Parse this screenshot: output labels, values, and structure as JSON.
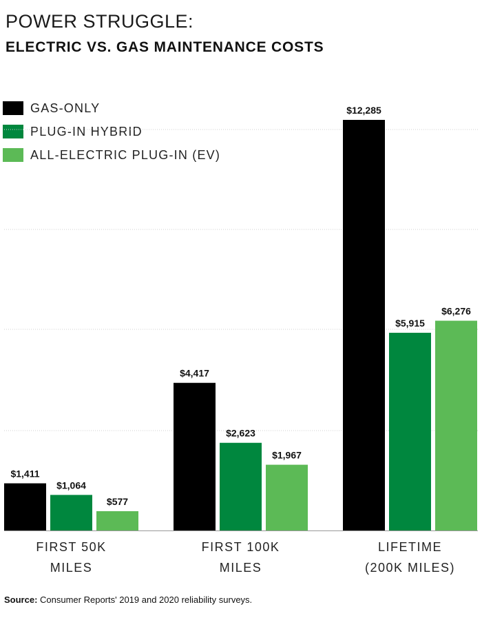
{
  "title": "POWER STRUGGLE:",
  "subtitle": "ELECTRIC VS. GAS MAINTENANCE COSTS",
  "legend": [
    {
      "label": "GAS-ONLY",
      "color": "#000000"
    },
    {
      "label": "PLUG-IN HYBRID",
      "color": "#00873e"
    },
    {
      "label": "ALL-ELECTRIC PLUG-IN (EV)",
      "color": "#5cba56"
    }
  ],
  "source": {
    "label": "Source:",
    "text": " Consumer Reports' 2019 and 2020 reliability surveys."
  },
  "chart_data": {
    "type": "bar",
    "categories": [
      [
        "FIRST 50K",
        "MILES"
      ],
      [
        "FIRST 100K",
        "MILES"
      ],
      [
        "LIFETIME",
        "(200K MILES)"
      ]
    ],
    "series": [
      {
        "name": "GAS-ONLY",
        "color": "#000000",
        "values": [
          1411,
          4417,
          12285
        ],
        "labels": [
          "$1,411",
          "$4,417",
          "$12,285"
        ]
      },
      {
        "name": "PLUG-IN HYBRID",
        "color": "#00873e",
        "values": [
          1064,
          2623,
          5915
        ],
        "labels": [
          "$1,064",
          "$2,623",
          "$5,915"
        ]
      },
      {
        "name": "ALL-ELECTRIC PLUG-IN (EV)",
        "color": "#5cba56",
        "values": [
          577,
          1967,
          6276
        ],
        "labels": [
          "$577",
          "$1,967",
          "$6,276"
        ]
      }
    ],
    "ylim": [
      0,
      12285
    ],
    "grid": true,
    "legend_position": "top-left"
  }
}
